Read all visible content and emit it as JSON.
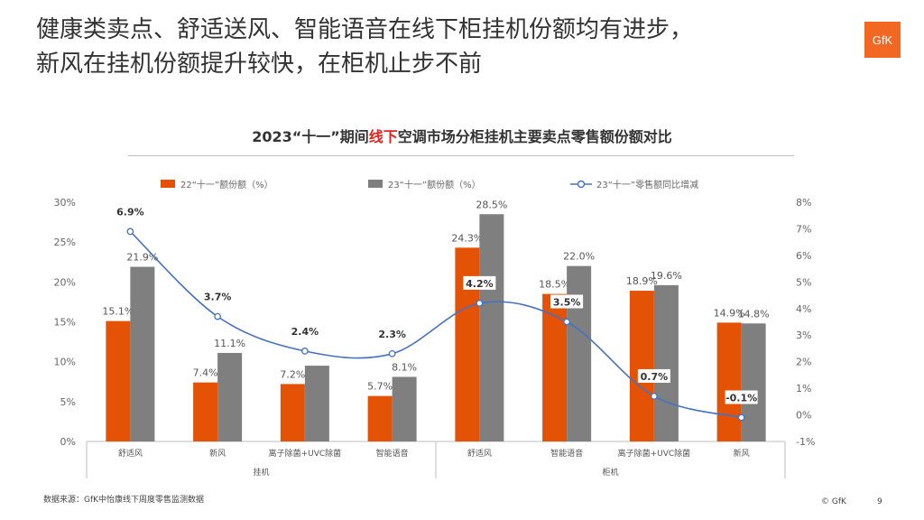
{
  "headline": {
    "line1": "健康类卖点、舒适送风、智能语音在线下柜挂机份额均有进步，",
    "line2": "新风在挂机份额提升较快，在柜机止步不前"
  },
  "logo": {
    "text": "GfK",
    "color": "#f26722"
  },
  "chart_data": {
    "type": "bar",
    "title_prefix": "2023“十一”期间",
    "title_highlight": "线下",
    "title_suffix": "空调市场分柜挂机主要卖点零售额份额对比",
    "categories": [
      "舒适风",
      "新风",
      "离子除菌+UVC除菌",
      "智能语音",
      "舒适风",
      "智能语音",
      "离子除菌+UVC除菌",
      "新风"
    ],
    "groups": [
      {
        "label": "挂机",
        "count": 4
      },
      {
        "label": "柜机",
        "count": 4
      }
    ],
    "series": [
      {
        "name": "22“十一”额份额（%）",
        "kind": "bar",
        "axis": "left",
        "color": "#e35205",
        "values": [
          15.1,
          7.4,
          7.2,
          5.7,
          24.3,
          18.5,
          18.9,
          14.9
        ],
        "labels": [
          "15.1%",
          "7.4%",
          "7.2%",
          "5.7%",
          "24.3%",
          "18.5%",
          "18.9%",
          "14.9%"
        ]
      },
      {
        "name": "23“十一”额份额（%）",
        "kind": "bar",
        "axis": "left",
        "color": "#7f7f7f",
        "values": [
          21.9,
          11.1,
          9.5,
          8.1,
          28.5,
          22.0,
          19.6,
          14.8
        ],
        "labels": [
          "21.9%",
          "11.1%",
          "",
          "8.1%",
          "28.5%",
          "22.0%",
          "19.6%",
          "14.8%"
        ]
      },
      {
        "name": "23“十一”零售额同比增减",
        "kind": "line",
        "axis": "right",
        "color": "#4472c4",
        "values": [
          6.9,
          3.7,
          2.4,
          2.3,
          4.2,
          3.5,
          0.7,
          -0.1
        ],
        "labels": [
          "6.9%",
          "3.7%",
          "2.4%",
          "2.3%",
          "4.2%",
          "3.5%",
          "0.7%",
          "-0.1%"
        ]
      }
    ],
    "y_left": {
      "min": 0,
      "max": 30,
      "ticks": [
        "0%",
        "5%",
        "10%",
        "15%",
        "20%",
        "25%",
        "30%"
      ]
    },
    "y_right": {
      "min": -1,
      "max": 8,
      "ticks": [
        "-1%",
        "0%",
        "1%",
        "2%",
        "3%",
        "4%",
        "5%",
        "6%",
        "7%",
        "8%"
      ]
    },
    "legend_position": "top",
    "grid": false
  },
  "footer": {
    "source": "数据来源：GfK中怡康线下周度零售监测数据",
    "copyright": "© GfK",
    "page": "9"
  }
}
